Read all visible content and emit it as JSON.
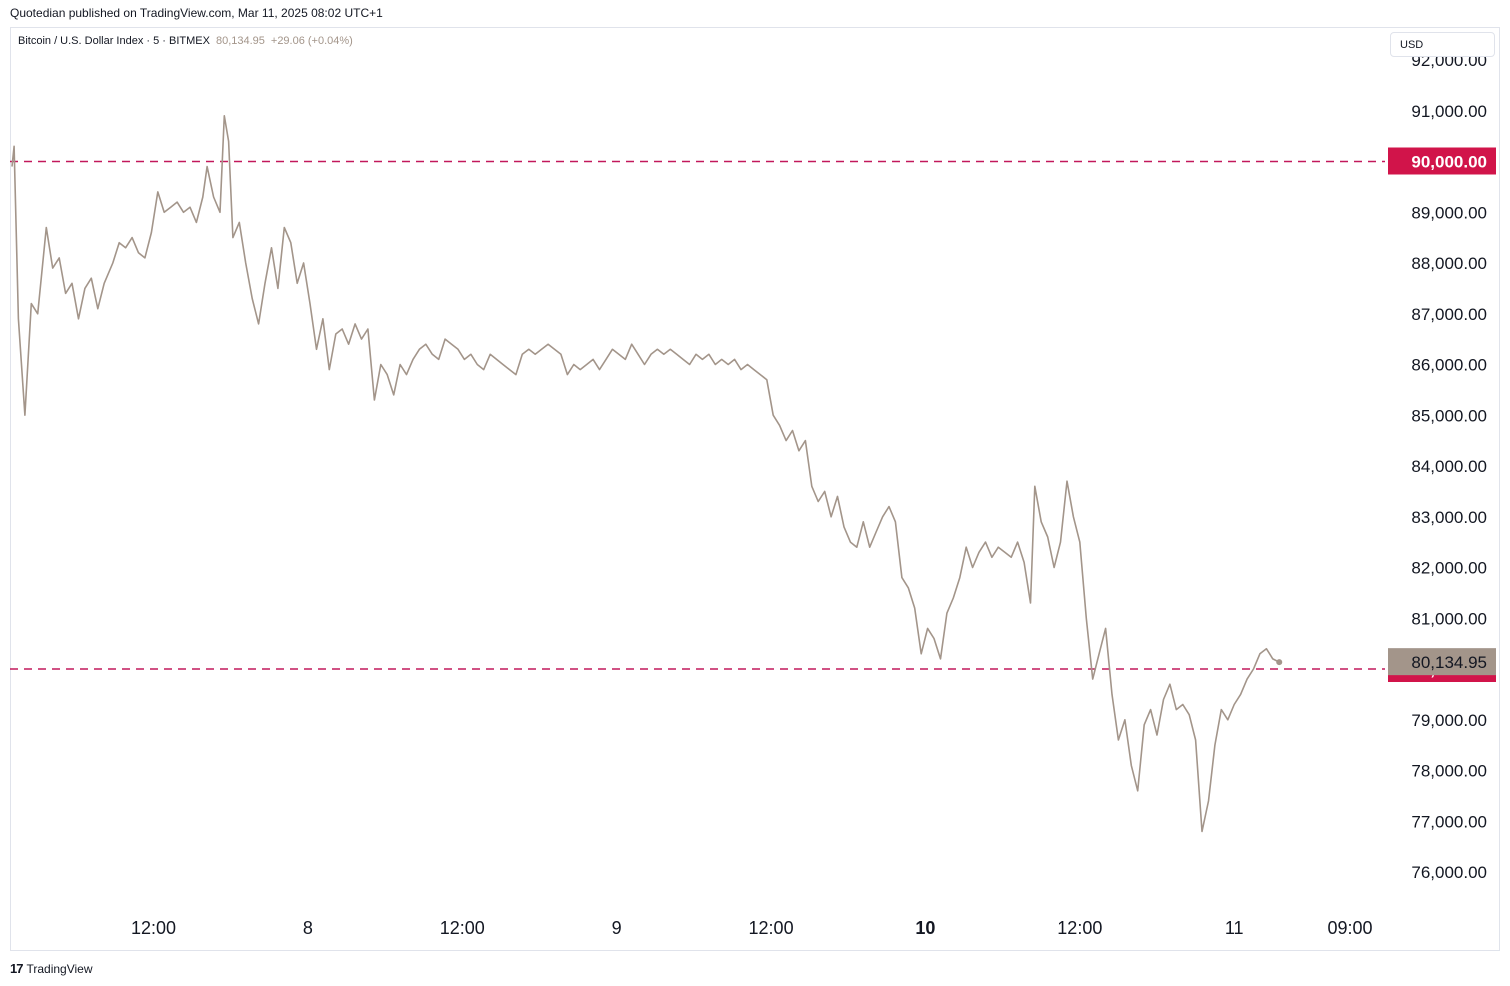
{
  "header": {
    "published_by": "Quotedian published on TradingView.com, Mar 11, 2025 08:02 UTC+1"
  },
  "legend": {
    "symbol": "Bitcoin / U.S. Dollar Index · 5 · BITMEX",
    "last": "80,134.95",
    "change": "+29.06 (+0.04%)"
  },
  "currency": "USD",
  "footer": {
    "logo_text": "TradingView",
    "logo_mark": "17"
  },
  "colors": {
    "series": "#a3958a",
    "level_line": "#c2185b",
    "level_label_bg": "#d1144a",
    "price_label_bg": "#a3958a",
    "axis_text": "#131722"
  },
  "chart_data": {
    "type": "line",
    "title": "Bitcoin / U.S. Dollar Index · 5 · BITMEX",
    "xlabel": "",
    "ylabel": "",
    "ylim": [
      75500,
      92300
    ],
    "y_ticks": [
      "92,000.00",
      "91,000.00",
      "89,000.00",
      "88,000.00",
      "87,000.00",
      "86,000.00",
      "85,000.00",
      "84,000.00",
      "83,000.00",
      "82,000.00",
      "81,000.00",
      "79,000.00",
      "78,000.00",
      "77,000.00",
      "76,000.00"
    ],
    "y_tick_values": [
      92000,
      91000,
      89000,
      88000,
      87000,
      86000,
      85000,
      84000,
      83000,
      82000,
      81000,
      79000,
      78000,
      77000,
      76000
    ],
    "x_ticks": [
      {
        "label": "12:00",
        "t": "2025-03-07 12:00",
        "bold": false
      },
      {
        "label": "8",
        "t": "2025-03-08 00:00",
        "bold": false
      },
      {
        "label": "12:00",
        "t": "2025-03-08 12:00",
        "bold": false
      },
      {
        "label": "9",
        "t": "2025-03-09 00:00",
        "bold": false
      },
      {
        "label": "12:00",
        "t": "2025-03-09 12:00",
        "bold": false
      },
      {
        "label": "10",
        "t": "2025-03-10 00:00",
        "bold": true
      },
      {
        "label": "12:00",
        "t": "2025-03-10 12:00",
        "bold": false
      },
      {
        "label": "11",
        "t": "2025-03-11 00:00",
        "bold": false
      },
      {
        "label": "09:00",
        "t": "2025-03-11 09:00",
        "bold": false
      }
    ],
    "x_range": [
      "2025-03-07 01:00",
      "2025-03-11 09:00"
    ],
    "horizontal_levels": [
      {
        "value": 90000,
        "label": "90,000.00"
      },
      {
        "value": 80000,
        "label": "80,000.00"
      }
    ],
    "last_price": {
      "value": 80134.95,
      "label": "80,134.95"
    },
    "series": [
      {
        "values": [
          [
            "2025-03-07 01:00",
            89900
          ],
          [
            "2025-03-07 01:10",
            90300
          ],
          [
            "2025-03-07 01:30",
            86900
          ],
          [
            "2025-03-07 02:00",
            85000
          ],
          [
            "2025-03-07 02:30",
            87200
          ],
          [
            "2025-03-07 03:00",
            87000
          ],
          [
            "2025-03-07 03:40",
            88700
          ],
          [
            "2025-03-07 04:10",
            87900
          ],
          [
            "2025-03-07 04:40",
            88100
          ],
          [
            "2025-03-07 05:10",
            87400
          ],
          [
            "2025-03-07 05:40",
            87600
          ],
          [
            "2025-03-07 06:10",
            86900
          ],
          [
            "2025-03-07 06:40",
            87500
          ],
          [
            "2025-03-07 07:10",
            87700
          ],
          [
            "2025-03-07 07:40",
            87100
          ],
          [
            "2025-03-07 08:10",
            87600
          ],
          [
            "2025-03-07 08:50",
            88000
          ],
          [
            "2025-03-07 09:20",
            88400
          ],
          [
            "2025-03-07 09:50",
            88300
          ],
          [
            "2025-03-07 10:20",
            88500
          ],
          [
            "2025-03-07 10:50",
            88200
          ],
          [
            "2025-03-07 11:20",
            88100
          ],
          [
            "2025-03-07 11:50",
            88600
          ],
          [
            "2025-03-07 12:20",
            89400
          ],
          [
            "2025-03-07 12:50",
            89000
          ],
          [
            "2025-03-07 13:20",
            89100
          ],
          [
            "2025-03-07 13:50",
            89200
          ],
          [
            "2025-03-07 14:20",
            89000
          ],
          [
            "2025-03-07 14:50",
            89100
          ],
          [
            "2025-03-07 15:20",
            88800
          ],
          [
            "2025-03-07 15:50",
            89300
          ],
          [
            "2025-03-07 16:10",
            89900
          ],
          [
            "2025-03-07 16:40",
            89300
          ],
          [
            "2025-03-07 17:10",
            89000
          ],
          [
            "2025-03-07 17:30",
            90900
          ],
          [
            "2025-03-07 17:50",
            90400
          ],
          [
            "2025-03-07 18:10",
            88500
          ],
          [
            "2025-03-07 18:40",
            88800
          ],
          [
            "2025-03-07 19:10",
            88000
          ],
          [
            "2025-03-07 19:40",
            87300
          ],
          [
            "2025-03-07 20:10",
            86800
          ],
          [
            "2025-03-07 20:40",
            87600
          ],
          [
            "2025-03-07 21:10",
            88300
          ],
          [
            "2025-03-07 21:40",
            87500
          ],
          [
            "2025-03-07 22:10",
            88700
          ],
          [
            "2025-03-07 22:40",
            88400
          ],
          [
            "2025-03-07 23:10",
            87600
          ],
          [
            "2025-03-07 23:40",
            88000
          ],
          [
            "2025-03-08 00:10",
            87200
          ],
          [
            "2025-03-08 00:40",
            86300
          ],
          [
            "2025-03-08 01:10",
            86900
          ],
          [
            "2025-03-08 01:40",
            85900
          ],
          [
            "2025-03-08 02:10",
            86600
          ],
          [
            "2025-03-08 02:40",
            86700
          ],
          [
            "2025-03-08 03:10",
            86400
          ],
          [
            "2025-03-08 03:40",
            86800
          ],
          [
            "2025-03-08 04:10",
            86500
          ],
          [
            "2025-03-08 04:40",
            86700
          ],
          [
            "2025-03-08 05:10",
            85300
          ],
          [
            "2025-03-08 05:40",
            86000
          ],
          [
            "2025-03-08 06:10",
            85800
          ],
          [
            "2025-03-08 06:40",
            85400
          ],
          [
            "2025-03-08 07:10",
            86000
          ],
          [
            "2025-03-08 07:40",
            85800
          ],
          [
            "2025-03-08 08:10",
            86100
          ],
          [
            "2025-03-08 08:40",
            86300
          ],
          [
            "2025-03-08 09:10",
            86400
          ],
          [
            "2025-03-08 09:40",
            86200
          ],
          [
            "2025-03-08 10:10",
            86100
          ],
          [
            "2025-03-08 10:40",
            86500
          ],
          [
            "2025-03-08 11:10",
            86400
          ],
          [
            "2025-03-08 11:40",
            86300
          ],
          [
            "2025-03-08 12:10",
            86100
          ],
          [
            "2025-03-08 12:40",
            86200
          ],
          [
            "2025-03-08 13:10",
            86000
          ],
          [
            "2025-03-08 13:40",
            85900
          ],
          [
            "2025-03-08 14:10",
            86200
          ],
          [
            "2025-03-08 14:40",
            86100
          ],
          [
            "2025-03-08 15:10",
            86000
          ],
          [
            "2025-03-08 15:40",
            85900
          ],
          [
            "2025-03-08 16:10",
            85800
          ],
          [
            "2025-03-08 16:40",
            86200
          ],
          [
            "2025-03-08 17:10",
            86300
          ],
          [
            "2025-03-08 17:40",
            86200
          ],
          [
            "2025-03-08 18:10",
            86300
          ],
          [
            "2025-03-08 18:40",
            86400
          ],
          [
            "2025-03-08 19:10",
            86300
          ],
          [
            "2025-03-08 19:40",
            86200
          ],
          [
            "2025-03-08 20:10",
            85800
          ],
          [
            "2025-03-08 20:40",
            86000
          ],
          [
            "2025-03-08 21:10",
            85900
          ],
          [
            "2025-03-08 21:40",
            86000
          ],
          [
            "2025-03-08 22:10",
            86100
          ],
          [
            "2025-03-08 22:40",
            85900
          ],
          [
            "2025-03-08 23:10",
            86100
          ],
          [
            "2025-03-08 23:40",
            86300
          ],
          [
            "2025-03-09 00:10",
            86200
          ],
          [
            "2025-03-09 00:40",
            86100
          ],
          [
            "2025-03-09 01:10",
            86400
          ],
          [
            "2025-03-09 01:40",
            86200
          ],
          [
            "2025-03-09 02:10",
            86000
          ],
          [
            "2025-03-09 02:40",
            86200
          ],
          [
            "2025-03-09 03:10",
            86300
          ],
          [
            "2025-03-09 03:40",
            86200
          ],
          [
            "2025-03-09 04:10",
            86300
          ],
          [
            "2025-03-09 04:40",
            86200
          ],
          [
            "2025-03-09 05:10",
            86100
          ],
          [
            "2025-03-09 05:40",
            86000
          ],
          [
            "2025-03-09 06:10",
            86200
          ],
          [
            "2025-03-09 06:40",
            86100
          ],
          [
            "2025-03-09 07:10",
            86200
          ],
          [
            "2025-03-09 07:40",
            86000
          ],
          [
            "2025-03-09 08:10",
            86100
          ],
          [
            "2025-03-09 08:40",
            86000
          ],
          [
            "2025-03-09 09:10",
            86100
          ],
          [
            "2025-03-09 09:40",
            85900
          ],
          [
            "2025-03-09 10:10",
            86000
          ],
          [
            "2025-03-09 10:40",
            85900
          ],
          [
            "2025-03-09 11:10",
            85800
          ],
          [
            "2025-03-09 11:40",
            85700
          ],
          [
            "2025-03-09 12:10",
            85000
          ],
          [
            "2025-03-09 12:40",
            84800
          ],
          [
            "2025-03-09 13:10",
            84500
          ],
          [
            "2025-03-09 13:40",
            84700
          ],
          [
            "2025-03-09 14:10",
            84300
          ],
          [
            "2025-03-09 14:40",
            84500
          ],
          [
            "2025-03-09 15:10",
            83600
          ],
          [
            "2025-03-09 15:40",
            83300
          ],
          [
            "2025-03-09 16:10",
            83500
          ],
          [
            "2025-03-09 16:40",
            83000
          ],
          [
            "2025-03-09 17:10",
            83400
          ],
          [
            "2025-03-09 17:40",
            82800
          ],
          [
            "2025-03-09 18:10",
            82500
          ],
          [
            "2025-03-09 18:40",
            82400
          ],
          [
            "2025-03-09 19:10",
            82900
          ],
          [
            "2025-03-09 19:40",
            82400
          ],
          [
            "2025-03-09 20:10",
            82700
          ],
          [
            "2025-03-09 20:40",
            83000
          ],
          [
            "2025-03-09 21:10",
            83200
          ],
          [
            "2025-03-09 21:40",
            82900
          ],
          [
            "2025-03-09 22:10",
            81800
          ],
          [
            "2025-03-09 22:40",
            81600
          ],
          [
            "2025-03-09 23:10",
            81200
          ],
          [
            "2025-03-09 23:40",
            80300
          ],
          [
            "2025-03-10 00:10",
            80800
          ],
          [
            "2025-03-10 00:40",
            80600
          ],
          [
            "2025-03-10 01:10",
            80200
          ],
          [
            "2025-03-10 01:40",
            81100
          ],
          [
            "2025-03-10 02:10",
            81400
          ],
          [
            "2025-03-10 02:40",
            81800
          ],
          [
            "2025-03-10 03:10",
            82400
          ],
          [
            "2025-03-10 03:40",
            82000
          ],
          [
            "2025-03-10 04:10",
            82300
          ],
          [
            "2025-03-10 04:40",
            82500
          ],
          [
            "2025-03-10 05:10",
            82200
          ],
          [
            "2025-03-10 05:40",
            82400
          ],
          [
            "2025-03-10 06:10",
            82300
          ],
          [
            "2025-03-10 06:40",
            82200
          ],
          [
            "2025-03-10 07:10",
            82500
          ],
          [
            "2025-03-10 07:40",
            82100
          ],
          [
            "2025-03-10 08:10",
            81300
          ],
          [
            "2025-03-10 08:30",
            83600
          ],
          [
            "2025-03-10 09:00",
            82900
          ],
          [
            "2025-03-10 09:30",
            82600
          ],
          [
            "2025-03-10 10:00",
            82000
          ],
          [
            "2025-03-10 10:30",
            82500
          ],
          [
            "2025-03-10 11:00",
            83700
          ],
          [
            "2025-03-10 11:30",
            83000
          ],
          [
            "2025-03-10 12:00",
            82500
          ],
          [
            "2025-03-10 12:30",
            81000
          ],
          [
            "2025-03-10 13:00",
            79800
          ],
          [
            "2025-03-10 13:30",
            80300
          ],
          [
            "2025-03-10 14:00",
            80800
          ],
          [
            "2025-03-10 14:30",
            79500
          ],
          [
            "2025-03-10 15:00",
            78600
          ],
          [
            "2025-03-10 15:30",
            79000
          ],
          [
            "2025-03-10 16:00",
            78100
          ],
          [
            "2025-03-10 16:30",
            77600
          ],
          [
            "2025-03-10 17:00",
            78900
          ],
          [
            "2025-03-10 17:30",
            79200
          ],
          [
            "2025-03-10 18:00",
            78700
          ],
          [
            "2025-03-10 18:30",
            79400
          ],
          [
            "2025-03-10 19:00",
            79700
          ],
          [
            "2025-03-10 19:30",
            79200
          ],
          [
            "2025-03-10 20:00",
            79300
          ],
          [
            "2025-03-10 20:30",
            79100
          ],
          [
            "2025-03-10 21:00",
            78600
          ],
          [
            "2025-03-10 21:30",
            76800
          ],
          [
            "2025-03-10 22:00",
            77400
          ],
          [
            "2025-03-10 22:30",
            78500
          ],
          [
            "2025-03-10 23:00",
            79200
          ],
          [
            "2025-03-10 23:30",
            79000
          ],
          [
            "2025-03-11 00:00",
            79300
          ],
          [
            "2025-03-11 00:30",
            79500
          ],
          [
            "2025-03-11 01:00",
            79800
          ],
          [
            "2025-03-11 01:30",
            80000
          ],
          [
            "2025-03-11 02:00",
            80300
          ],
          [
            "2025-03-11 02:30",
            80400
          ],
          [
            "2025-03-11 03:00",
            80200
          ],
          [
            "2025-03-11 03:30",
            80135
          ]
        ]
      }
    ]
  }
}
